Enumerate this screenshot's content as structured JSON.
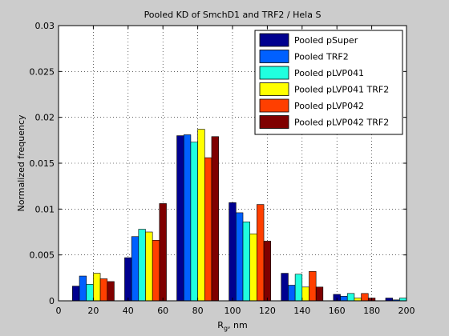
{
  "chart_data": {
    "type": "bar",
    "title": "Pooled KD of SmchD1 and TRF2 / Hela S",
    "xlabel": "R",
    "xlabel_sub": "g",
    "xlabel_suffix": ", nm",
    "ylabel": "Normalized frequency",
    "xlim": [
      0,
      200
    ],
    "ylim": [
      0,
      0.03
    ],
    "xticks": [
      0,
      20,
      40,
      60,
      80,
      100,
      120,
      140,
      160,
      180,
      200
    ],
    "yticks": [
      0,
      0.005,
      0.01,
      0.015,
      0.02,
      0.025,
      0.03
    ],
    "ytick_labels": [
      "0",
      "0.005",
      "0.01",
      "0.015",
      "0.02",
      "0.025",
      "0.03"
    ],
    "grid": true,
    "legend_position": "top-right",
    "bin_centers": [
      20,
      50,
      80,
      110,
      140,
      170,
      200
    ],
    "bin_width": 30,
    "series": [
      {
        "name": "Pooled pSuper",
        "color": "#00008f",
        "values": [
          0.0016,
          0.0047,
          0.018,
          0.0107,
          0.003,
          0.0007,
          0.0003
        ]
      },
      {
        "name": "Pooled TRF2",
        "color": "#0060ff",
        "values": [
          0.0027,
          0.007,
          0.0181,
          0.0096,
          0.0017,
          0.0005,
          0.0001
        ]
      },
      {
        "name": "Pooled pLVP041",
        "color": "#20ffdf",
        "values": [
          0.0018,
          0.0078,
          0.0173,
          0.0086,
          0.0029,
          0.0008,
          0.0003
        ]
      },
      {
        "name": "Pooled pLVP041 TRF2",
        "color": "#ffff00",
        "values": [
          0.003,
          0.0075,
          0.0187,
          0.0073,
          0.0015,
          0.0003,
          0.0004
        ]
      },
      {
        "name": "Pooled pLVP042",
        "color": "#ff3f00",
        "values": [
          0.0024,
          0.0066,
          0.0156,
          0.0105,
          0.0032,
          0.0008,
          0.0002
        ]
      },
      {
        "name": "Pooled pLVP042 TRF2",
        "color": "#7f0000",
        "values": [
          0.0021,
          0.0106,
          0.0179,
          0.0065,
          0.0015,
          0.0003,
          0.0002
        ]
      }
    ]
  }
}
